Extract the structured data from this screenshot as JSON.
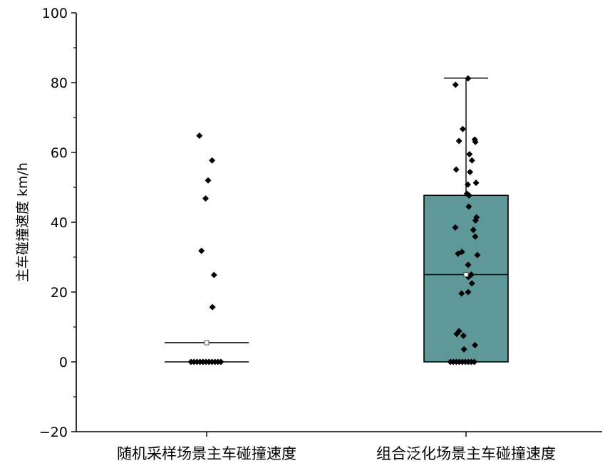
{
  "chart_data": {
    "type": "box",
    "ylabel": "主车碰撞速度 km/h",
    "ylim": [
      -20,
      100
    ],
    "y_major_ticks": [
      -20,
      0,
      20,
      40,
      60,
      80,
      100
    ],
    "y_minor_ticks": [
      -10,
      10,
      30,
      50,
      70,
      90
    ],
    "grid": false,
    "categories": [
      "随机采样场景主车碰撞速度",
      "组合泛化场景主车碰撞速度"
    ],
    "series": [
      {
        "category": "随机采样场景主车碰撞速度",
        "show_box": false,
        "q1": 0,
        "median": 0,
        "q3": 0,
        "mean": 5.5,
        "whisker_low": 0,
        "whisker_high": 0,
        "points": [
          64.8,
          57.7,
          52.0,
          46.8,
          31.8,
          24.9,
          15.7,
          0,
          0,
          0,
          0,
          0,
          0,
          0,
          0,
          0,
          0,
          0
        ]
      },
      {
        "category": "组合泛化场景主车碰撞速度",
        "show_box": true,
        "q1": 0,
        "median": 25.0,
        "q3": 47.7,
        "mean": 25.0,
        "whisker_low": 0,
        "whisker_high": 81.3,
        "points": [
          81.2,
          79.4,
          66.7,
          63.7,
          63.3,
          63.0,
          59.5,
          57.7,
          55.1,
          54.4,
          51.3,
          50.8,
          48.2,
          47.7,
          44.5,
          41.4,
          40.5,
          38.5,
          37.8,
          35.9,
          31.5,
          31.0,
          30.6,
          27.8,
          25.0,
          24.3,
          22.5,
          20.0,
          19.6,
          8.8,
          8.0,
          7.5,
          4.8,
          3.6,
          0,
          0,
          0,
          0,
          0,
          0,
          0,
          0,
          0
        ]
      }
    ],
    "colors": {
      "box_fill": "#5f9898",
      "box_stroke": "#000000",
      "point": "#000000",
      "mean_marker_stroke": "#555555"
    }
  }
}
